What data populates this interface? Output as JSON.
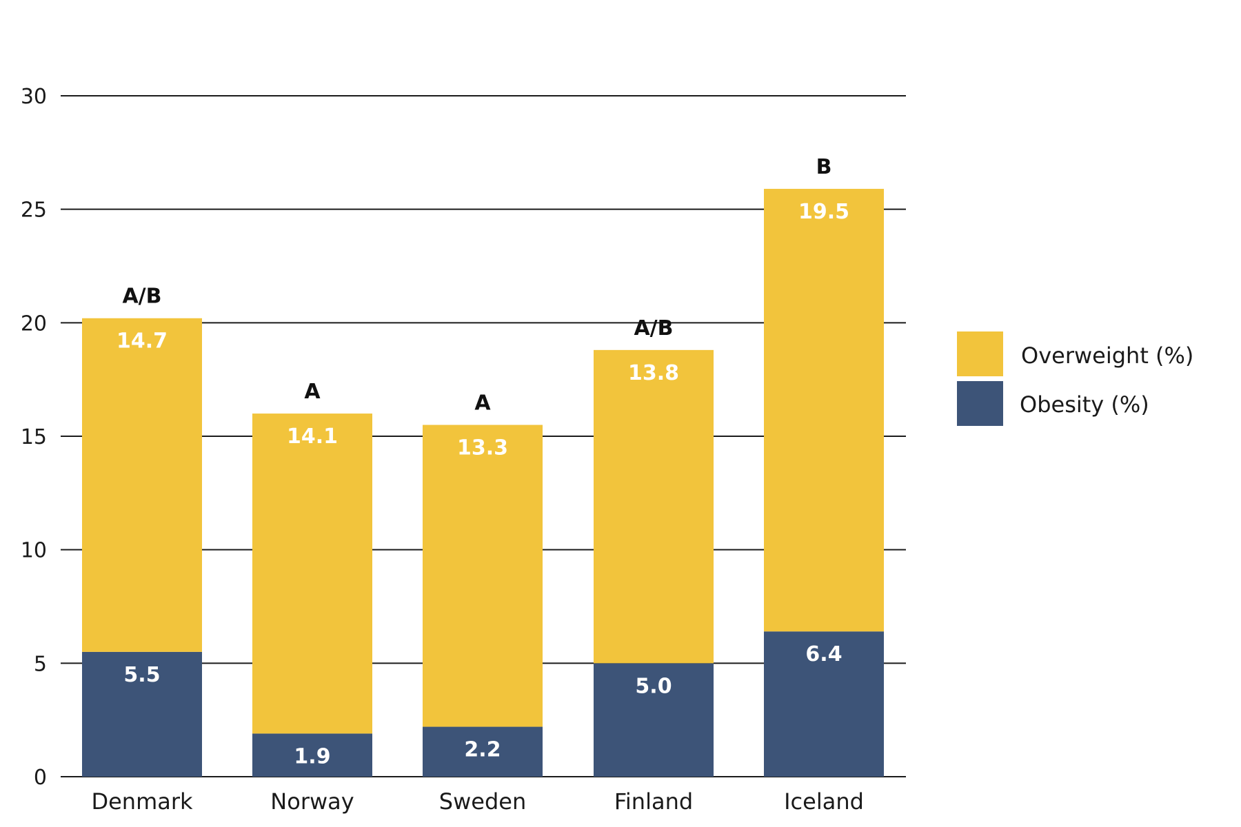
{
  "chart_data": {
    "type": "bar",
    "stacked": true,
    "categories": [
      "Denmark",
      "Norway",
      "Sweden",
      "Finland",
      "Iceland"
    ],
    "series": [
      {
        "name": "Obesity (%)",
        "values": [
          5.5,
          1.9,
          2.2,
          5.0,
          6.4
        ],
        "color": "#3d5478"
      },
      {
        "name": "Overweight (%)",
        "values": [
          14.7,
          14.1,
          13.3,
          13.8,
          19.5
        ],
        "color": "#f2c43c"
      }
    ],
    "group_labels": [
      "A/B",
      "A",
      "A",
      "A/B",
      "B"
    ],
    "value_labels": [
      [
        "5.5",
        "1.9",
        "2.2",
        "5.0",
        "6.4"
      ],
      [
        "14.7",
        "14.1",
        "13.3",
        "13.8",
        "19.5"
      ]
    ],
    "yticks": [
      "0",
      "5",
      "10",
      "15",
      "20",
      "25",
      "30"
    ],
    "ylim": [
      0,
      30
    ],
    "grid": true,
    "legend_position": "right",
    "legend": [
      "Overweight (%)",
      "Obesity (%)"
    ],
    "title": "",
    "xlabel": "",
    "ylabel": ""
  }
}
